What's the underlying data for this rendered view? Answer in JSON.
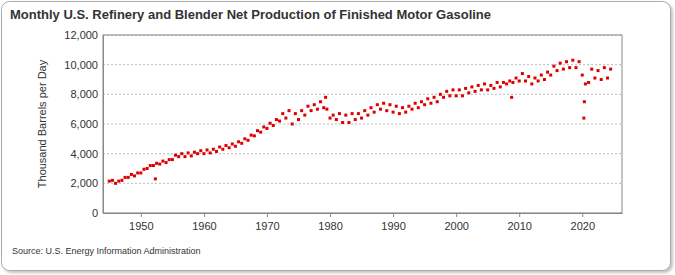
{
  "chart_data": {
    "type": "scatter",
    "title": "Monthly U.S. Refinery and Blender Net Production of Finished Motor Gasoline",
    "y_label": "Thousand Barrels per Day",
    "source": "Source: U.S. Energy Information Administration",
    "color": "#dd0000",
    "marker": "square",
    "grid": true,
    "xlim": [
      1944,
      2026.3
    ],
    "xticks": [
      1950,
      1960,
      1970,
      1980,
      1990,
      2000,
      2010,
      2020
    ],
    "ylim": [
      0,
      12000
    ],
    "yticks": [
      0,
      {
        "value": 2000,
        "label": "2,000"
      },
      {
        "value": 4000,
        "label": "4,000"
      },
      {
        "value": 6000,
        "label": "6,000"
      },
      {
        "value": 8000,
        "label": "8,000"
      },
      {
        "value": 10000,
        "label": "10,000"
      },
      {
        "value": 12000,
        "label": "12,000"
      }
    ],
    "x": [
      1945.0,
      1945.5,
      1946.0,
      1946.5,
      1947.0,
      1947.5,
      1948.0,
      1948.5,
      1949.0,
      1949.5,
      1950.0,
      1950.5,
      1951.0,
      1951.5,
      1952.0,
      1952.3,
      1952.5,
      1953.0,
      1953.5,
      1954.0,
      1954.5,
      1955.0,
      1955.5,
      1956.0,
      1956.5,
      1957.0,
      1957.5,
      1958.0,
      1958.5,
      1959.0,
      1959.5,
      1960.0,
      1960.5,
      1961.0,
      1961.5,
      1962.0,
      1962.5,
      1963.0,
      1963.5,
      1964.0,
      1964.5,
      1965.0,
      1965.5,
      1966.0,
      1966.5,
      1967.0,
      1967.5,
      1968.0,
      1968.5,
      1969.0,
      1969.5,
      1970.0,
      1970.5,
      1971.0,
      1971.5,
      1972.0,
      1972.5,
      1973.0,
      1973.5,
      1974.0,
      1974.5,
      1975.0,
      1975.5,
      1976.0,
      1976.5,
      1977.0,
      1977.5,
      1978.0,
      1978.5,
      1979.0,
      1979.3,
      1979.5,
      1980.0,
      1980.5,
      1981.0,
      1981.5,
      1982.0,
      1982.5,
      1983.0,
      1983.5,
      1984.0,
      1984.5,
      1985.0,
      1985.5,
      1986.0,
      1986.5,
      1987.0,
      1987.5,
      1988.0,
      1988.5,
      1989.0,
      1989.5,
      1990.0,
      1990.5,
      1991.0,
      1991.5,
      1992.0,
      1992.5,
      1993.0,
      1993.5,
      1994.0,
      1994.5,
      1995.0,
      1995.5,
      1996.0,
      1996.5,
      1997.0,
      1997.5,
      1998.0,
      1998.5,
      1999.0,
      1999.5,
      2000.0,
      2000.5,
      2001.0,
      2001.5,
      2002.0,
      2002.5,
      2003.0,
      2003.5,
      2004.0,
      2004.5,
      2005.0,
      2005.5,
      2006.0,
      2006.5,
      2007.0,
      2007.5,
      2008.0,
      2008.5,
      2008.8,
      2009.0,
      2009.5,
      2010.0,
      2010.5,
      2011.0,
      2011.5,
      2012.0,
      2012.5,
      2013.0,
      2013.5,
      2014.0,
      2014.5,
      2015.0,
      2015.5,
      2016.0,
      2016.5,
      2017.0,
      2017.5,
      2018.0,
      2018.5,
      2019.0,
      2019.5,
      2020.0,
      2020.25,
      2020.33,
      2020.5,
      2021.0,
      2021.5,
      2022.0,
      2022.5,
      2023.0,
      2023.5,
      2024.0,
      2024.5
    ],
    "values": [
      2150,
      2200,
      2000,
      2150,
      2200,
      2400,
      2400,
      2600,
      2500,
      2700,
      2700,
      2950,
      3000,
      3200,
      3200,
      2300,
      3350,
      3300,
      3500,
      3400,
      3600,
      3600,
      3900,
      3800,
      4000,
      3800,
      4050,
      3850,
      4100,
      4000,
      4200,
      4000,
      4250,
      4050,
      4300,
      4150,
      4450,
      4300,
      4550,
      4400,
      4650,
      4500,
      4800,
      4700,
      5000,
      4900,
      5250,
      5200,
      5550,
      5450,
      5800,
      5700,
      6050,
      5900,
      6300,
      6200,
      6700,
      6400,
      6900,
      6000,
      6700,
      6300,
      6900,
      6600,
      7200,
      6900,
      7300,
      7000,
      7500,
      7100,
      7800,
      7000,
      6400,
      6600,
      6300,
      6700,
      6100,
      6600,
      6100,
      6700,
      6300,
      6700,
      6400,
      6900,
      6600,
      7100,
      6800,
      7300,
      7000,
      7400,
      6900,
      7300,
      6800,
      7200,
      6700,
      7100,
      6800,
      7200,
      7000,
      7400,
      7100,
      7500,
      7300,
      7700,
      7400,
      7800,
      7500,
      8000,
      7800,
      8200,
      7900,
      8300,
      7900,
      8300,
      7900,
      8400,
      8100,
      8500,
      8200,
      8600,
      8300,
      8700,
      8300,
      8600,
      8400,
      8800,
      8500,
      8800,
      8700,
      8900,
      7800,
      8800,
      9100,
      8900,
      9400,
      8900,
      9200,
      8700,
      9100,
      8900,
      9300,
      9000,
      9500,
      9300,
      9900,
      9600,
      10100,
      9700,
      10200,
      9800,
      10300,
      9800,
      10200,
      9300,
      6400,
      7500,
      8700,
      8800,
      9700,
      9100,
      9600,
      9000,
      9800,
      9100,
      9700
    ]
  }
}
